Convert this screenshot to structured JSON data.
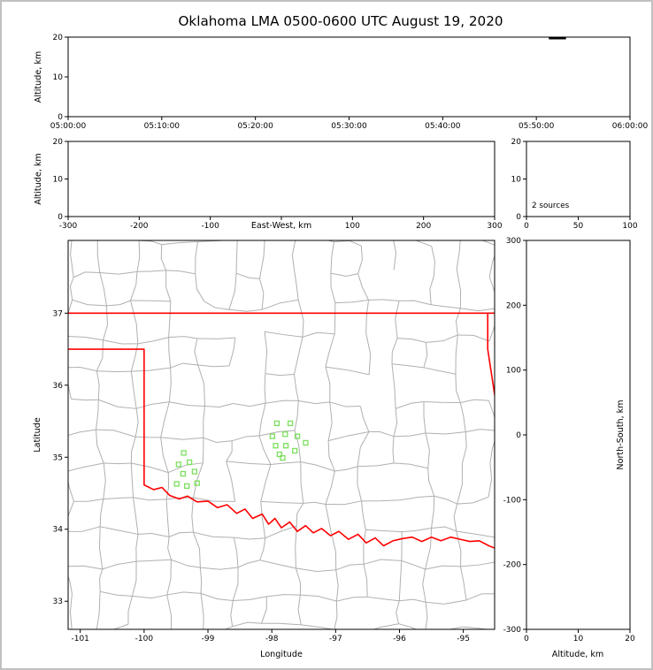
{
  "title": "Oklahoma LMA 0500-0600 UTC August 19, 2020",
  "colors": {
    "frame": "#000000",
    "state_boundary": "#ff0000",
    "county_lines": "#b0b0b0",
    "stations": "#7cdf5e",
    "sources": "#000000",
    "background": "#ffffff",
    "page_border": "#c0c0c0"
  },
  "chart_data": {
    "type": "composite",
    "title": "Oklahoma LMA 0500-0600 UTC August 19, 2020",
    "panels": {
      "time_height": {
        "type": "scatter",
        "ylabel": "Altitude, km",
        "ylim": [
          0,
          20
        ],
        "yticks": [
          0,
          10,
          20
        ],
        "xlim": [
          "05:00:00",
          "06:00:00"
        ],
        "xticks": [
          "05:00:00",
          "05:10:00",
          "05:20:00",
          "05:30:00",
          "05:40:00",
          "05:50:00",
          "06:00:00"
        ],
        "sources_dash": {
          "t_start": "05:51:20",
          "t_end": "05:53:10",
          "altitude_km": 20
        }
      },
      "ew_height": {
        "type": "scatter",
        "xlabel": "East-West, km",
        "xlim": [
          -300,
          300
        ],
        "xticks": [
          -300,
          -200,
          -100,
          0,
          100,
          200,
          300
        ],
        "xtick_labels": [
          -300,
          -200,
          -100,
          100,
          200,
          300
        ],
        "ylabel": "Altitude, km",
        "ylim": [
          0,
          20
        ],
        "yticks": [
          0,
          10,
          20
        ],
        "points": []
      },
      "altitude_histogram": {
        "type": "histogram",
        "xlim": [
          0,
          100
        ],
        "xticks": [
          0,
          50,
          100
        ],
        "ylim": [
          0,
          20
        ],
        "yticks": [
          0,
          10,
          20
        ],
        "annotation": "2 sources"
      },
      "map": {
        "type": "map-scatter",
        "xlabel": "Longitude",
        "ylabel": "Latitude",
        "xlim": [
          -101.19,
          -94.51
        ],
        "ylim": [
          32.61,
          38.01
        ],
        "xticks": [
          -101,
          -100,
          -99,
          -98,
          -97,
          -96,
          -95
        ],
        "yticks": [
          33,
          34,
          35,
          36,
          37
        ],
        "stations_lonlat": [
          [
            -97.92,
            35.47
          ],
          [
            -97.71,
            35.47
          ],
          [
            -97.99,
            35.29
          ],
          [
            -97.79,
            35.32
          ],
          [
            -97.6,
            35.29
          ],
          [
            -97.94,
            35.16
          ],
          [
            -97.78,
            35.16
          ],
          [
            -97.64,
            35.09
          ],
          [
            -97.88,
            35.04
          ],
          [
            -97.47,
            35.2
          ],
          [
            -97.83,
            34.99
          ],
          [
            -99.38,
            35.06
          ],
          [
            -99.46,
            34.9
          ],
          [
            -99.29,
            34.93
          ],
          [
            -99.39,
            34.77
          ],
          [
            -99.21,
            34.8
          ],
          [
            -99.49,
            34.63
          ],
          [
            -99.33,
            34.6
          ],
          [
            -99.17,
            34.64
          ]
        ],
        "state_boundary_polylines": [
          [
            [
              -101.3,
              37.0
            ],
            [
              -94.4,
              37.0
            ]
          ],
          [
            [
              -94.618,
              37.0
            ],
            [
              -94.618,
              36.5
            ],
            [
              -94.43,
              35.4
            ]
          ],
          [
            [
              -101.3,
              36.5
            ],
            [
              -100.0,
              36.5
            ],
            [
              -100.0,
              34.615
            ],
            [
              -99.85,
              34.55
            ],
            [
              -99.72,
              34.58
            ],
            [
              -99.6,
              34.47
            ],
            [
              -99.45,
              34.42
            ],
            [
              -99.32,
              34.46
            ],
            [
              -99.17,
              34.38
            ],
            [
              -99.0,
              34.39
            ],
            [
              -98.85,
              34.3
            ],
            [
              -98.7,
              34.34
            ],
            [
              -98.55,
              34.22
            ],
            [
              -98.42,
              34.28
            ],
            [
              -98.3,
              34.15
            ],
            [
              -98.15,
              34.21
            ],
            [
              -98.05,
              34.07
            ],
            [
              -97.95,
              34.15
            ],
            [
              -97.85,
              34.02
            ],
            [
              -97.72,
              34.1
            ],
            [
              -97.6,
              33.97
            ],
            [
              -97.47,
              34.05
            ],
            [
              -97.35,
              33.95
            ],
            [
              -97.22,
              34.01
            ],
            [
              -97.08,
              33.91
            ],
            [
              -96.95,
              33.97
            ],
            [
              -96.8,
              33.86
            ],
            [
              -96.65,
              33.93
            ],
            [
              -96.52,
              33.81
            ],
            [
              -96.38,
              33.88
            ],
            [
              -96.25,
              33.77
            ],
            [
              -96.1,
              33.84
            ],
            [
              -95.95,
              33.87
            ],
            [
              -95.8,
              33.89
            ],
            [
              -95.65,
              33.83
            ],
            [
              -95.5,
              33.89
            ],
            [
              -95.35,
              33.84
            ],
            [
              -95.2,
              33.89
            ],
            [
              -95.05,
              33.86
            ],
            [
              -94.9,
              33.83
            ],
            [
              -94.75,
              33.84
            ],
            [
              -94.6,
              33.77
            ],
            [
              -94.4,
              33.7
            ]
          ]
        ]
      },
      "ns_height": {
        "type": "scatter",
        "xlabel": "Altitude, km",
        "xlim": [
          0,
          20
        ],
        "xticks": [
          0,
          10,
          20
        ],
        "ylabel": "North-South, km",
        "ylim": [
          -300,
          300
        ],
        "yticks": [
          300,
          200,
          100,
          0,
          -100,
          -200,
          -300
        ],
        "points": []
      }
    }
  }
}
